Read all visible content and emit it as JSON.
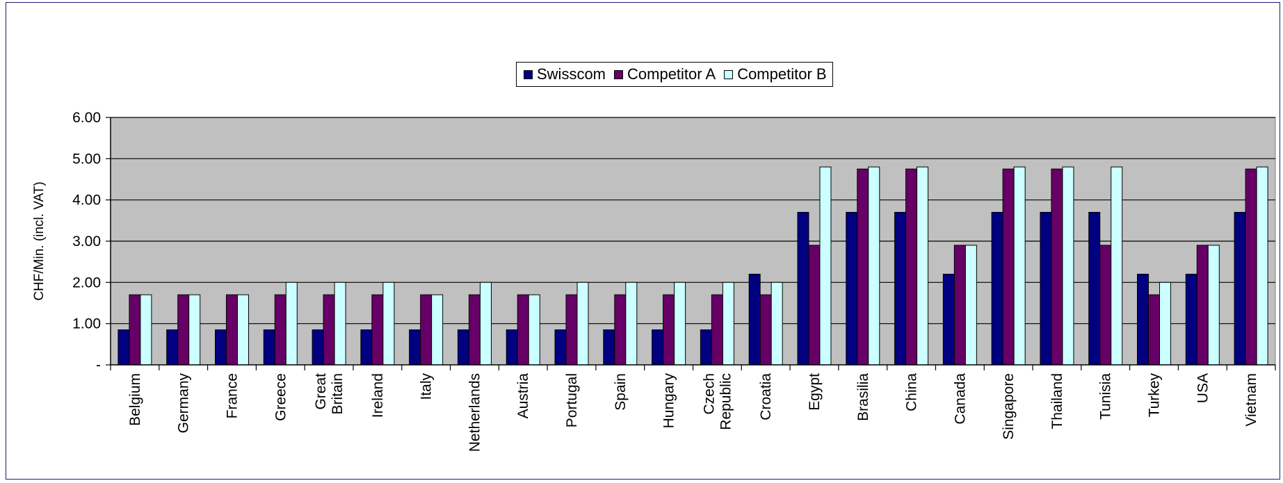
{
  "chart_data": {
    "type": "bar",
    "title": "",
    "xlabel": "",
    "ylabel": "CHF/Min. (incl. VAT)",
    "ylim": [
      0,
      6
    ],
    "y_ticks": [
      {
        "value": 0,
        "label": "-"
      },
      {
        "value": 1,
        "label": "1.00"
      },
      {
        "value": 2,
        "label": "2.00"
      },
      {
        "value": 3,
        "label": "3.00"
      },
      {
        "value": 4,
        "label": "4.00"
      },
      {
        "value": 5,
        "label": "5.00"
      },
      {
        "value": 6,
        "label": "6.00"
      }
    ],
    "grid": true,
    "legend_position": "top-center",
    "categories": [
      [
        "Belgium"
      ],
      [
        "Germany"
      ],
      [
        "France"
      ],
      [
        "Greece"
      ],
      [
        "Great",
        "Britain"
      ],
      [
        "Ireland"
      ],
      [
        "Italy"
      ],
      [
        "Netherlands"
      ],
      [
        "Austria"
      ],
      [
        "Portugal"
      ],
      [
        "Spain"
      ],
      [
        "Hungary"
      ],
      [
        "Czech",
        "Republic"
      ],
      [
        "Croatia"
      ],
      [
        "Egypt"
      ],
      [
        "Brasilia"
      ],
      [
        "China"
      ],
      [
        "Canada"
      ],
      [
        "Singapore"
      ],
      [
        "Thailand"
      ],
      [
        "Tunisia"
      ],
      [
        "Turkey"
      ],
      [
        "USA"
      ],
      [
        "Vietnam"
      ]
    ],
    "series": [
      {
        "name": "Swisscom",
        "color": "#000080",
        "values": [
          0.85,
          0.85,
          0.85,
          0.85,
          0.85,
          0.85,
          0.85,
          0.85,
          0.85,
          0.85,
          0.85,
          0.85,
          0.85,
          2.2,
          3.7,
          3.7,
          3.7,
          2.2,
          3.7,
          3.7,
          3.7,
          2.2,
          2.2,
          3.7
        ]
      },
      {
        "name": "Competitor A",
        "color": "#660066",
        "values": [
          1.7,
          1.7,
          1.7,
          1.7,
          1.7,
          1.7,
          1.7,
          1.7,
          1.7,
          1.7,
          1.7,
          1.7,
          1.7,
          1.7,
          2.9,
          4.75,
          4.75,
          2.9,
          4.75,
          4.75,
          2.9,
          1.7,
          2.9,
          4.75
        ]
      },
      {
        "name": "Competitor B",
        "color": "#ccffff",
        "values": [
          1.7,
          1.7,
          1.7,
          2.0,
          2.0,
          2.0,
          1.7,
          2.0,
          1.7,
          2.0,
          2.0,
          2.0,
          2.0,
          2.0,
          4.8,
          4.8,
          4.8,
          2.9,
          4.8,
          4.8,
          4.8,
          2.0,
          2.9,
          4.8
        ]
      }
    ],
    "colors": {
      "plot_background": "#c0c0c0",
      "gridline": "#000000"
    }
  }
}
